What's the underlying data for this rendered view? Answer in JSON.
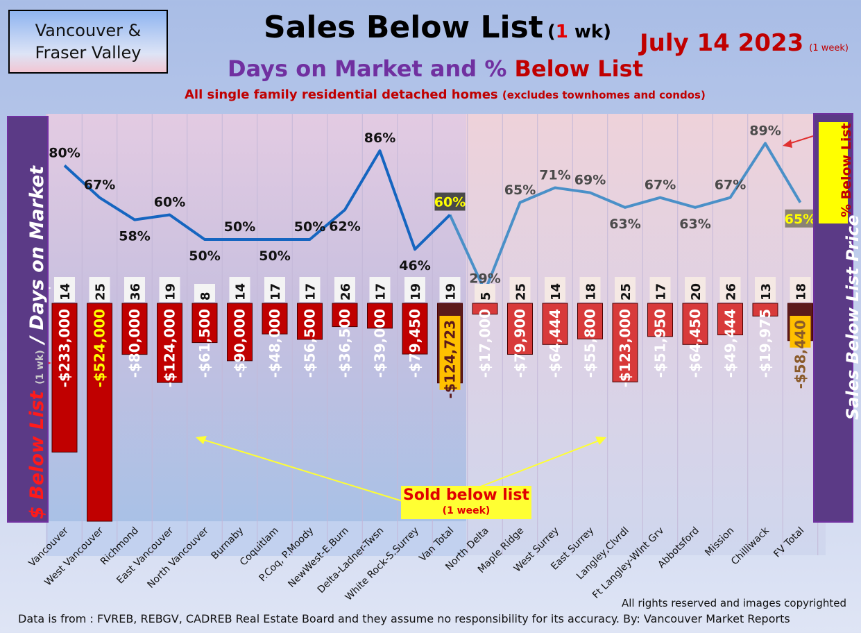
{
  "header": {
    "region_line1": "Vancouver &",
    "region_line2": "Fraser Valley",
    "title": "Sales Below List",
    "title_suffix_open": "(",
    "title_suffix_num": "1",
    "title_suffix_close": " wk)",
    "date": "July 14  2023",
    "date_note": "(1 week)",
    "subtitle_part1": "Days on Market and % ",
    "subtitle_part2": "Below List",
    "subtitle2": "All single family residential detached homes",
    "subtitle2_note": "(excludes townhomes and condos)"
  },
  "side_left": {
    "part1": "$ Below List",
    "part2": "(1 wk)",
    "part3": "/ Days on Market"
  },
  "side_right": {
    "label": "Sales Below List Price",
    "pct_label": "% Below List"
  },
  "annotation": {
    "line1": "Sold below list",
    "line2": "(1 week)"
  },
  "footer": {
    "copyright": "All rights reserved and  images copyrighted",
    "source": "Data is from : FVREB, REBGV, CADREB Real Estate Board and they assume no responsibility for its accuracy. By: Vancouver Market Reports"
  },
  "colors": {
    "bar_van": "#c00000",
    "bar_fv": "#d83a3a",
    "bar_total": "#5c1a1a",
    "line_van": "#1565c0",
    "line_fv": "#4a90c8",
    "total_label_bg": "#ffc000"
  },
  "chart_data": {
    "type": "bar+line",
    "categories": [
      "Vancouver",
      "West Vancouver",
      "Richmond",
      "East Vancouver",
      "North Vancouver",
      "Burnaby",
      "Coquitlam",
      "P.Coq, P.Moody",
      "NewWest-E.Burn",
      "Delta-Ladner-Twsn",
      "White Rock-S.Surrey",
      "Van Total",
      "North Delta",
      "Maple Ridge",
      "West Surrey",
      "East Surrey",
      "Langley,Clvrdl",
      "Ft Langley-Wlnt Grv",
      "Abbotsford",
      "Mission",
      "Chilliwack",
      "FV Total"
    ],
    "dollar_below_list": [
      -233000,
      -524000,
      -80000,
      -124000,
      -61500,
      -90000,
      -48000,
      -56500,
      -36500,
      -39000,
      -79450,
      -124723,
      -17000,
      -79900,
      -64444,
      -55800,
      -123000,
      -51950,
      -64450,
      -49444,
      -19975,
      -58440
    ],
    "dollar_labels": [
      "-$233,000",
      "-$524,000",
      "-$80,000",
      "-$124,000",
      "-$61,500",
      "-$90,000",
      "-$48,000",
      "-$56,500",
      "-$36,500",
      "-$39,000",
      "-$79,450",
      "-$124,723",
      "-$17,000",
      "-$79,900",
      "-$64,444",
      "-$55,800",
      "-$123,000",
      "-$51,950",
      "-$64,450",
      "-$49,444",
      "-$19,975",
      "-$58,440"
    ],
    "days_on_market": [
      14,
      25,
      36,
      19,
      8,
      14,
      17,
      17,
      26,
      17,
      19,
      19,
      5,
      25,
      14,
      18,
      25,
      17,
      20,
      26,
      13,
      18
    ],
    "pct_below_list": [
      80,
      67,
      58,
      60,
      50,
      50,
      50,
      50,
      62,
      86,
      46,
      60,
      29,
      65,
      71,
      69,
      63,
      67,
      63,
      67,
      89,
      65
    ],
    "pct_labels": [
      "80%",
      "67%",
      "58%",
      "60%",
      "50%",
      "50%",
      "50%",
      "50%",
      "62%",
      "86%",
      "46%",
      "60%",
      "29%",
      "65%",
      "71%",
      "69%",
      "63%",
      "67%",
      "63%",
      "67%",
      "89%",
      "65%"
    ]
  }
}
